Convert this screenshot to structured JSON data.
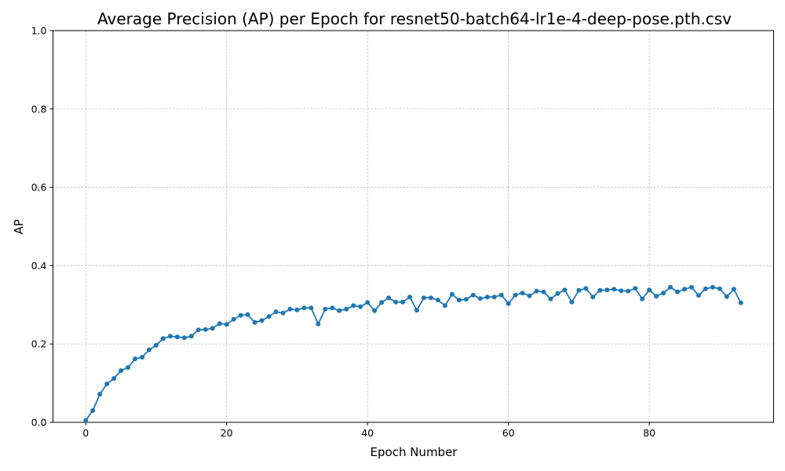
{
  "chart_data": {
    "type": "line",
    "title": "Average Precision (AP) per Epoch for resnet50-batch64-lr1e-4-deep-pose.pth.csv",
    "xlabel": "Epoch Number",
    "ylabel": "AP",
    "xlim": [
      -4.65,
      97.65
    ],
    "ylim": [
      0.0,
      1.0
    ],
    "x_ticks": [
      0,
      20,
      40,
      60,
      80
    ],
    "x_tick_labels": [
      "0",
      "20",
      "40",
      "60",
      "80"
    ],
    "y_ticks": [
      0.0,
      0.2,
      0.4,
      0.6,
      0.8,
      1.0
    ],
    "y_tick_labels": [
      "0.0",
      "0.2",
      "0.4",
      "0.6",
      "0.8",
      "1.0"
    ],
    "grid": true,
    "series": [
      {
        "color": "#1f77b4",
        "marker": "circle",
        "x": [
          0,
          1,
          2,
          3,
          4,
          5,
          6,
          7,
          8,
          9,
          10,
          11,
          12,
          13,
          14,
          15,
          16,
          17,
          18,
          19,
          20,
          21,
          22,
          23,
          24,
          25,
          26,
          27,
          28,
          29,
          30,
          31,
          32,
          33,
          34,
          35,
          36,
          37,
          38,
          39,
          40,
          41,
          42,
          43,
          44,
          45,
          46,
          47,
          48,
          49,
          50,
          51,
          52,
          53,
          54,
          55,
          56,
          57,
          58,
          59,
          60,
          61,
          62,
          63,
          64,
          65,
          66,
          67,
          68,
          69,
          70,
          71,
          72,
          73,
          74,
          75,
          76,
          77,
          78,
          79,
          80,
          81,
          82,
          83,
          84,
          85,
          86,
          87,
          88,
          89,
          90,
          91,
          92,
          93
        ],
        "values": [
          0.005,
          0.03,
          0.072,
          0.098,
          0.112,
          0.132,
          0.14,
          0.162,
          0.166,
          0.185,
          0.197,
          0.214,
          0.22,
          0.218,
          0.216,
          0.22,
          0.236,
          0.237,
          0.24,
          0.252,
          0.25,
          0.263,
          0.273,
          0.275,
          0.255,
          0.26,
          0.27,
          0.282,
          0.279,
          0.289,
          0.287,
          0.292,
          0.292,
          0.251,
          0.289,
          0.292,
          0.285,
          0.289,
          0.298,
          0.295,
          0.306,
          0.285,
          0.306,
          0.318,
          0.307,
          0.307,
          0.32,
          0.286,
          0.318,
          0.318,
          0.312,
          0.298,
          0.327,
          0.312,
          0.314,
          0.325,
          0.316,
          0.32,
          0.32,
          0.325,
          0.303,
          0.325,
          0.33,
          0.323,
          0.335,
          0.333,
          0.315,
          0.329,
          0.338,
          0.307,
          0.337,
          0.342,
          0.32,
          0.337,
          0.338,
          0.34,
          0.336,
          0.335,
          0.342,
          0.315,
          0.338,
          0.322,
          0.33,
          0.345,
          0.333,
          0.34,
          0.345,
          0.324,
          0.341,
          0.345,
          0.341,
          0.321,
          0.34,
          0.305
        ]
      }
    ]
  }
}
